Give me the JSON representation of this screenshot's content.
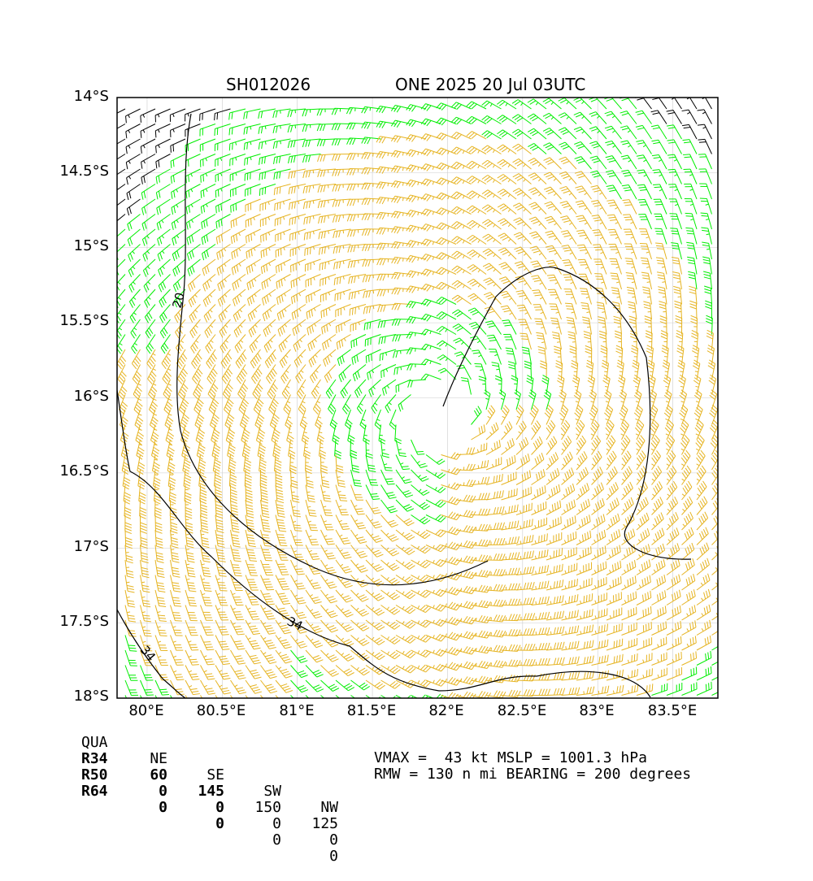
{
  "header": {
    "storm_id": "SH012026",
    "storm_info": "ONE 2025 20 Jul 03UTC"
  },
  "map": {
    "lat_labels": [
      "14°S",
      "14.5°S",
      "15°S",
      "15.5°S",
      "16°S",
      "16.5°S",
      "17°S",
      "17.5°S",
      "18°S"
    ],
    "lon_labels": [
      "80°E",
      "80.5°E",
      "81°E",
      "81.5°E",
      "82°E",
      "82.5°E",
      "83°E",
      "83.5°E"
    ],
    "contour_labels": [
      "20",
      "34",
      "34"
    ],
    "colors": {
      "black_barbs": "#000000",
      "green_barbs": "#00ee00",
      "gold_barbs": "#e6b422",
      "contour": "#000000",
      "grid": "#cccccc"
    },
    "center": {
      "lon": 81.95,
      "lat": -16.1
    }
  },
  "radii_table": {
    "header": [
      "QUA",
      "NE",
      "SE",
      "SW",
      "NW"
    ],
    "rows": [
      {
        "label": "R34",
        "values": [
          "60",
          "145",
          "150",
          "125"
        ]
      },
      {
        "label": "R50",
        "values": [
          "0",
          "0",
          "0",
          "0"
        ]
      },
      {
        "label": "R64",
        "values": [
          "0",
          "0",
          "0",
          "0"
        ]
      }
    ]
  },
  "summary": {
    "line1": "VMAX =  43 kt MSLP = 1001.3 hPa",
    "line2": "RMW = 130 n mi BEARING = 200 degrees"
  }
}
